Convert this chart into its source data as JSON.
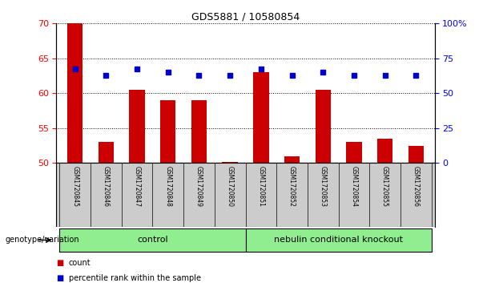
{
  "title": "GDS5881 / 10580854",
  "samples": [
    "GSM1720845",
    "GSM1720846",
    "GSM1720847",
    "GSM1720848",
    "GSM1720849",
    "GSM1720850",
    "GSM1720851",
    "GSM1720852",
    "GSM1720853",
    "GSM1720854",
    "GSM1720855",
    "GSM1720856"
  ],
  "counts": [
    70,
    53,
    60.5,
    59,
    59,
    50.2,
    63,
    51,
    60.5,
    53,
    53.5,
    52.5
  ],
  "percentile_ranks": [
    63.5,
    62.5,
    63.5,
    63,
    62.5,
    62.5,
    63.5,
    62.5,
    63,
    62.5,
    62.5,
    62.5
  ],
  "ylim_left": [
    50,
    70
  ],
  "ylim_right": [
    0,
    100
  ],
  "yticks_left": [
    50,
    55,
    60,
    65,
    70
  ],
  "yticks_right": [
    0,
    25,
    50,
    75,
    100
  ],
  "ytick_labels_right": [
    "0",
    "25",
    "50",
    "75",
    "100%"
  ],
  "bar_color": "#cc0000",
  "square_color": "#0000cc",
  "bar_width": 0.5,
  "baseline": 50,
  "group1_label": "control",
  "group2_label": "nebulin conditional knockout",
  "group1_color": "#90ee90",
  "group2_color": "#90ee90",
  "group_label_prefix": "genotype/variation",
  "legend_count_label": "count",
  "legend_pct_label": "percentile rank within the sample",
  "n_group1": 6,
  "n_group2": 6,
  "ax_bg": "#ffffff",
  "tick_label_area_bg": "#cccccc",
  "grid_color": "#000000",
  "grid_style": "dotted"
}
